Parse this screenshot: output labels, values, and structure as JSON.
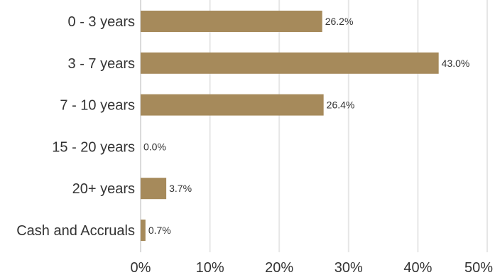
{
  "chart_data": {
    "type": "bar",
    "orientation": "horizontal",
    "title": "",
    "xlabel": "",
    "ylabel": "",
    "categories": [
      "0 - 3 years",
      "3 - 7 years",
      "7 - 10 years",
      "15 - 20 years",
      "20+ years",
      "Cash and Accruals"
    ],
    "values": [
      26.2,
      43.0,
      26.4,
      0.0,
      3.7,
      0.7
    ],
    "value_labels": [
      "26.2%",
      "43.0%",
      "26.4%",
      "0.0%",
      "3.7%",
      "0.7%"
    ],
    "xlim": [
      0,
      50
    ],
    "ticks": [
      0,
      10,
      20,
      30,
      40,
      50
    ],
    "tick_labels": [
      "0%",
      "10%",
      "20%",
      "30%",
      "40%",
      "50%"
    ],
    "grid": true,
    "legend": "none",
    "bar_color": "#a68a5b"
  }
}
